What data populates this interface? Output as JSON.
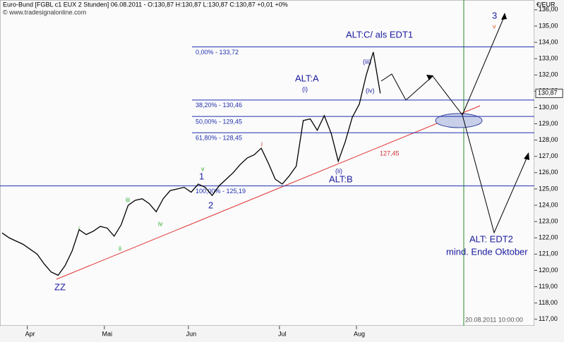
{
  "chart_data": {
    "type": "line",
    "title": "Euro-Bund [FGBL c1 EUX  2 Stunden] 06.08.2011 - O:130,87 H:130,87 L:130,87 C:130,87 +0,01 +0%",
    "subtitle": "© www.tradesignalonline.com",
    "y_axis_label": "€/EUR",
    "categories": [
      null,
      null,
      null,
      null,
      "Apr",
      null,
      null,
      null,
      null,
      null,
      null,
      null,
      null,
      null,
      null,
      "Mai",
      null,
      null,
      null,
      null,
      null,
      null,
      null,
      null,
      null,
      null,
      null,
      "Jun",
      null,
      null,
      null,
      null,
      null,
      null,
      null,
      null,
      null,
      null,
      null,
      null,
      "Jul",
      null,
      null,
      null,
      null,
      null,
      null,
      null,
      null,
      null,
      null,
      "Aug",
      null,
      null,
      null
    ],
    "series": [
      {
        "name": "Euro-Bund",
        "color": "#000000",
        "values": [
          122.3,
          122.0,
          121.8,
          121.6,
          121.3,
          121.0,
          120.4,
          119.9,
          119.7,
          120.3,
          121.2,
          122.5,
          122.2,
          122.4,
          122.7,
          122.6,
          122.1,
          122.8,
          124.0,
          124.3,
          124.4,
          124.1,
          123.6,
          124.4,
          124.9,
          125.0,
          125.1,
          124.8,
          125.3,
          125.1,
          124.6,
          125.2,
          125.6,
          126.0,
          126.5,
          126.9,
          127.1,
          127.5,
          126.6,
          125.6,
          125.3,
          125.8,
          126.4,
          129.2,
          129.3,
          128.6,
          129.5,
          128.4,
          126.7,
          127.9,
          129.4,
          130.2,
          132.0,
          133.4,
          130.87
        ]
      }
    ],
    "last_price": {
      "value": 130.87,
      "label": "130,87"
    },
    "xlim": [
      0,
      76
    ],
    "ylim": [
      116.6,
      136.6
    ],
    "yticks": [
      {
        "value": 117,
        "label": "117,00"
      },
      {
        "value": 118,
        "label": "118,00"
      },
      {
        "value": 119,
        "label": "119,00"
      },
      {
        "value": 120,
        "label": "120,00"
      },
      {
        "value": 121,
        "label": "121,00"
      },
      {
        "value": 122,
        "label": "122,00"
      },
      {
        "value": 123,
        "label": "123,00"
      },
      {
        "value": 124,
        "label": "124,00"
      },
      {
        "value": 125,
        "label": "125,00"
      },
      {
        "value": 126,
        "label": "126,00"
      },
      {
        "value": 127,
        "label": "127,00"
      },
      {
        "value": 128,
        "label": "128,00"
      },
      {
        "value": 129,
        "label": "129,00"
      },
      {
        "value": 130,
        "label": "130,00"
      },
      {
        "value": 131,
        "label": "131,00"
      },
      {
        "value": 132,
        "label": "132,00"
      },
      {
        "value": 133,
        "label": "133,00"
      },
      {
        "value": 134,
        "label": "134,00"
      },
      {
        "value": 135,
        "label": "135,00"
      },
      {
        "value": 136,
        "label": "136,00"
      }
    ],
    "levels": [
      {
        "value": 133.72,
        "label": "0,00% - 133,72"
      },
      {
        "value": 130.46,
        "label": "38,20% - 130,46"
      },
      {
        "value": 129.45,
        "label": "50,00% - 129,45"
      },
      {
        "value": 128.45,
        "label": "61,80% - 128,45"
      },
      {
        "value": 125.19,
        "label": "100,00% - 125,19"
      }
    ],
    "trendline_label": "127,45",
    "vline_label": "20.08.2011 10:00:00",
    "annotations": [
      "ALT:C/ als EDT1",
      "ALT:A",
      "ALT:B",
      "(i)",
      "(ii)",
      "(iii)",
      "(iv)",
      "1",
      "2",
      "3",
      "ZZ",
      "ALT: EDT2",
      "mind. Ende Oktober",
      "i",
      "ii",
      "iii",
      "iv",
      "v",
      "i",
      "v"
    ]
  }
}
